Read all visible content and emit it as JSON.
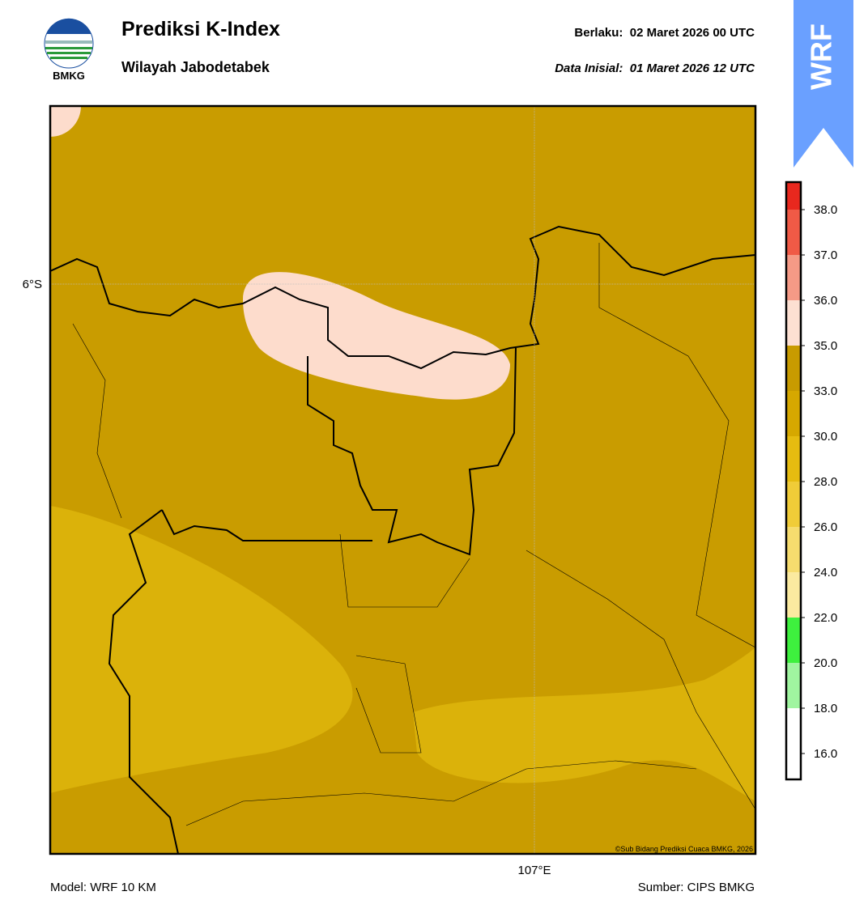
{
  "header": {
    "logo_text": "BMKG",
    "title": "Prediksi K-Index",
    "subtitle": "Wilayah Jabodetabek",
    "valid": "Berlaku:  02 Maret 2026 00 UTC",
    "init": "Data Inisial:  01 Maret 2026 12 UTC",
    "badge": "WRF"
  },
  "map": {
    "lat_label": "6°S",
    "lon_label": "107°E",
    "credit": "©Sub Bidang Prediksi Cuaca BMKG, 2026"
  },
  "colorbar": {
    "ticks": [
      {
        "value": 38,
        "label": "38.0"
      },
      {
        "value": 37,
        "label": "37.0"
      },
      {
        "value": 36,
        "label": "36.0"
      },
      {
        "value": 35,
        "label": "35.0"
      },
      {
        "value": 33,
        "label": "33.0"
      },
      {
        "value": 30,
        "label": "30.0"
      },
      {
        "value": 28,
        "label": "28.0"
      },
      {
        "value": 26,
        "label": "26.0"
      },
      {
        "value": 24,
        "label": "24.0"
      },
      {
        "value": 22,
        "label": "22.0"
      },
      {
        "value": 20,
        "label": "20.0"
      },
      {
        "value": 18,
        "label": "18.0"
      },
      {
        "value": 16,
        "label": "16.0"
      }
    ],
    "colors": [
      "#e8281e",
      "#f05a46",
      "#f59a86",
      "#fde0d2",
      "#c89b00",
      "#d6a800",
      "#e6bc10",
      "#f0cc38",
      "#f6dc6e",
      "#fbeaa0",
      "#3ef03e",
      "#a0f5a0",
      "#ffffff",
      "#ffffff"
    ]
  },
  "footer": {
    "model": "Model: WRF 10 KM",
    "source": "Sumber: CIPS BMKG"
  }
}
